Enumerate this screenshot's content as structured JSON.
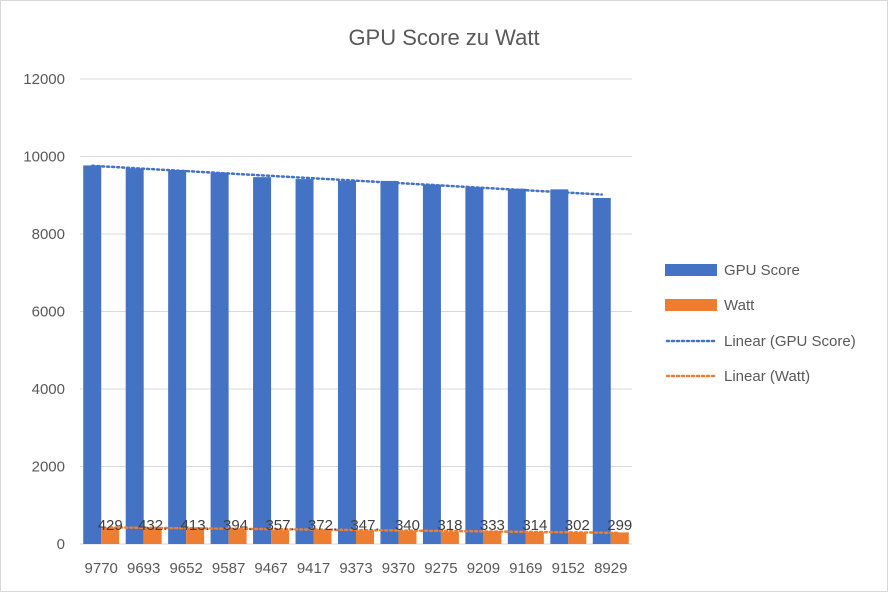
{
  "chart_data": {
    "type": "bar",
    "title": "GPU Score zu Watt",
    "xlabel": "",
    "ylabel": "",
    "ylim": [
      0,
      12000
    ],
    "yticks": [
      0,
      2000,
      4000,
      6000,
      8000,
      10000,
      12000
    ],
    "grid": true,
    "legend_position": "right",
    "categories": [
      "9770",
      "9693",
      "9652",
      "9587",
      "9467",
      "9417",
      "9373",
      "9370",
      "9275",
      "9209",
      "9169",
      "9152",
      "8929"
    ],
    "series": [
      {
        "name": "GPU Score",
        "color": "#4472c4",
        "values": [
          9770,
          9693,
          9652,
          9587,
          9467,
          9417,
          9373,
          9370,
          9275,
          9209,
          9169,
          9152,
          8929
        ]
      },
      {
        "name": "Watt",
        "color": "#ed7d31",
        "values": [
          429,
          432,
          413,
          394,
          357,
          372,
          347,
          340,
          318,
          333,
          314,
          302,
          299
        ],
        "data_labels": [
          "429",
          "432.",
          "413.",
          "394.",
          "357.",
          "372.",
          "347.",
          "340",
          "318",
          "333",
          "314",
          "302",
          "299"
        ]
      }
    ],
    "trendlines": [
      {
        "name": "Linear (GPU Score)",
        "series": "GPU Score",
        "type": "linear",
        "style": "dotted",
        "color": "#4472c4"
      },
      {
        "name": "Linear (Watt)",
        "series": "Watt",
        "type": "linear",
        "style": "dotted",
        "color": "#ed7d31"
      }
    ]
  }
}
